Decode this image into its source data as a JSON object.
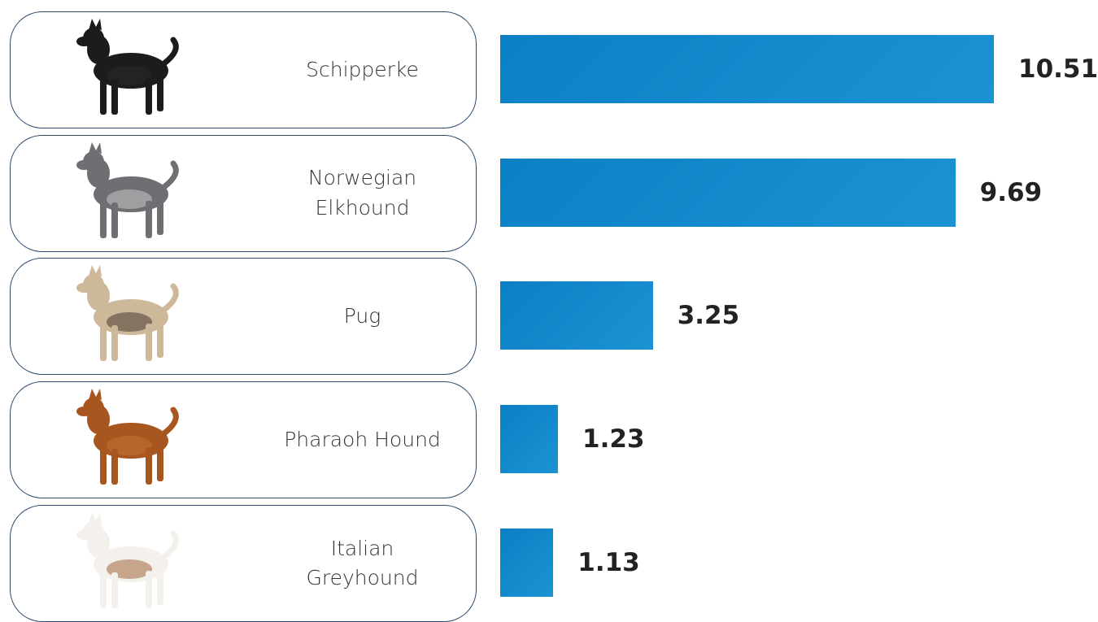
{
  "chart_data": {
    "type": "bar",
    "orientation": "horizontal",
    "categories": [
      "Schipperke",
      "Norwegian Elkhound",
      "Pug",
      "Pharaoh Hound",
      "Italian Greyhound"
    ],
    "values": [
      10.51,
      9.69,
      3.25,
      1.23,
      1.13
    ],
    "color": "#0b80c6"
  }
}
